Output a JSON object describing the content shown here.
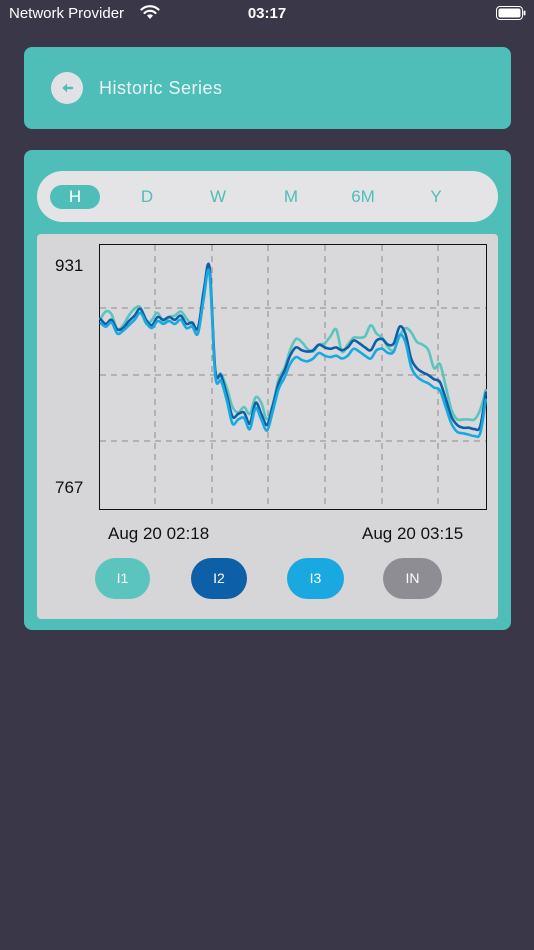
{
  "status_bar": {
    "carrier": "Network Provider",
    "time": "03:17"
  },
  "header": {
    "back_icon": "back-arrow-icon",
    "title": "Historic Series"
  },
  "range_tabs": [
    {
      "label": "H",
      "active": true
    },
    {
      "label": "D",
      "active": false
    },
    {
      "label": "W",
      "active": false
    },
    {
      "label": "M",
      "active": false
    },
    {
      "label": "6M",
      "active": false
    },
    {
      "label": "Y",
      "active": false
    }
  ],
  "colors": {
    "accent": "#4fbdb8",
    "background": "#3a3848",
    "I1": "#5cc4bf",
    "I2": "#0d5fa8",
    "I3": "#19a8e0",
    "IN": "#8d8d93"
  },
  "chart_data": {
    "type": "line",
    "y_tick_labels": [
      "931",
      "767"
    ],
    "ylim": [
      767,
      931
    ],
    "x_start_label": "Aug 20 02:18",
    "x_end_label": "Aug 20 03:15",
    "grid": true,
    "legend": "bottom",
    "series": [
      {
        "name": "I1",
        "color": "#5cc4bf",
        "values": [
          890,
          896,
          894,
          883,
          886,
          893,
          898,
          899,
          887,
          890,
          895,
          888,
          892,
          893,
          896,
          891,
          886,
          881,
          912,
          922,
          854,
          851,
          841,
          827,
          823,
          827,
          822,
          834,
          830,
          818,
          829,
          847,
          855,
          868,
          876,
          874,
          869,
          867,
          872,
          873,
          878,
          883,
          867,
          872,
          877,
          877,
          878,
          886,
          880,
          877,
          870,
          868,
          878,
          884,
          881,
          874,
          872,
          868,
          855,
          858,
          842,
          825,
          818,
          818,
          818,
          818,
          825,
          840
        ]
      },
      {
        "name": "I2",
        "color": "#0d5fa8",
        "values": [
          891,
          887,
          890,
          883,
          884,
          889,
          893,
          898,
          890,
          886,
          892,
          890,
          892,
          890,
          893,
          887,
          888,
          884,
          910,
          928,
          854,
          850,
          836,
          820,
          822,
          823,
          815,
          830,
          822,
          814,
          828,
          844,
          853,
          864,
          870,
          868,
          867,
          868,
          872,
          870,
          869,
          870,
          868,
          870,
          875,
          873,
          870,
          868,
          875,
          876,
          872,
          873,
          885,
          880,
          862,
          855,
          852,
          850,
          847,
          845,
          833,
          820,
          814,
          812,
          812,
          811,
          813,
          838
        ]
      },
      {
        "name": "I3",
        "color": "#19a8e0",
        "values": [
          888,
          885,
          888,
          880,
          882,
          886,
          890,
          895,
          888,
          884,
          889,
          887,
          889,
          887,
          890,
          884,
          885,
          880,
          905,
          924,
          850,
          846,
          832,
          815,
          818,
          819,
          811,
          826,
          818,
          810,
          824,
          840,
          848,
          858,
          863,
          861,
          860,
          862,
          866,
          864,
          863,
          864,
          862,
          864,
          869,
          867,
          864,
          862,
          868,
          869,
          866,
          867,
          879,
          874,
          856,
          849,
          846,
          844,
          841,
          839,
          827,
          815,
          809,
          808,
          807,
          806,
          808,
          833
        ]
      },
      {
        "name": "IN",
        "color": "#8d8d93",
        "values": []
      }
    ]
  },
  "legend": [
    {
      "label": "I1",
      "color": "#5cc4bf"
    },
    {
      "label": "I2",
      "color": "#0d5fa8"
    },
    {
      "label": "I3",
      "color": "#19a8e0"
    },
    {
      "label": "IN",
      "color": "#8d8d93"
    }
  ]
}
